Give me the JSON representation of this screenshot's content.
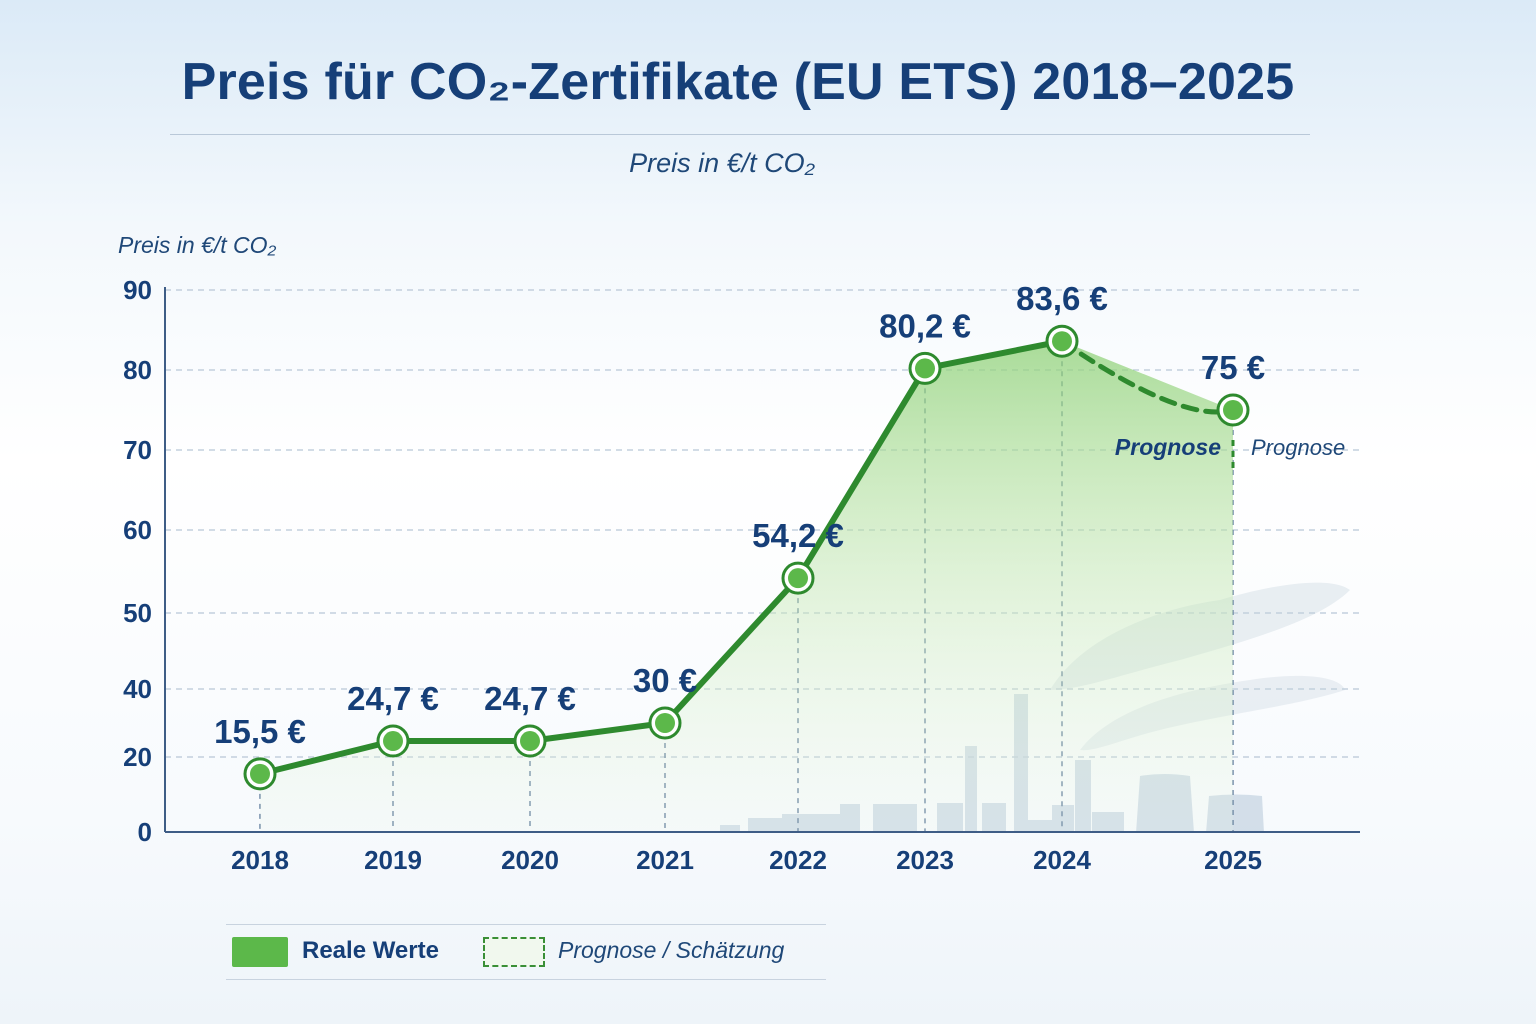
{
  "header": {
    "title": "Preis für CO₂-Zertifikate (EU ETS) 2018–2025",
    "subtitle": "Preis in €/t CO₂"
  },
  "chart_data": {
    "type": "line",
    "title": "Preis für CO₂-Zertifikate (EU ETS) 2018–2025",
    "subtitle": "Preis in €/t CO₂",
    "ylabel": "Preis in €/t CO₂",
    "xlabel": "",
    "categories": [
      "2018",
      "2019",
      "2020",
      "2021",
      "2022",
      "2023",
      "2024",
      "2025"
    ],
    "y_ticks": [
      "0",
      "20",
      "40",
      "50",
      "60",
      "70",
      "80",
      "90"
    ],
    "ylim": [
      0,
      90
    ],
    "grid": true,
    "series": [
      {
        "name": "Reale Werte",
        "values": [
          15.5,
          24.7,
          24.7,
          30,
          54.2,
          80.2,
          83.6,
          null
        ],
        "data_labels": [
          "15,5 €",
          "24,7 €",
          "24,7 €",
          "30 €",
          "54,2 €",
          "80,2 €",
          "83,6 €",
          ""
        ]
      },
      {
        "name": "Prognose / Schätzung",
        "values": [
          null,
          null,
          null,
          null,
          null,
          null,
          83.6,
          75
        ],
        "data_labels": [
          "",
          "",
          "",
          "",
          "",
          "",
          "",
          "75 €"
        ]
      }
    ],
    "annotations": [
      "Prognose",
      "Prognose"
    ],
    "legend": {
      "position": "bottom-left",
      "items": [
        {
          "label": "Reale Werte",
          "style": "solid",
          "color": "#5cb84a"
        },
        {
          "label": "Prognose / Schätzung",
          "style": "dashed",
          "color": "#3a8f36"
        }
      ]
    },
    "colors": {
      "line": "#2e8a2e",
      "marker_fill": "#5cb84a",
      "area_top": "#9fd98c",
      "axis": "#3e5d86",
      "text": "#163f78"
    }
  }
}
